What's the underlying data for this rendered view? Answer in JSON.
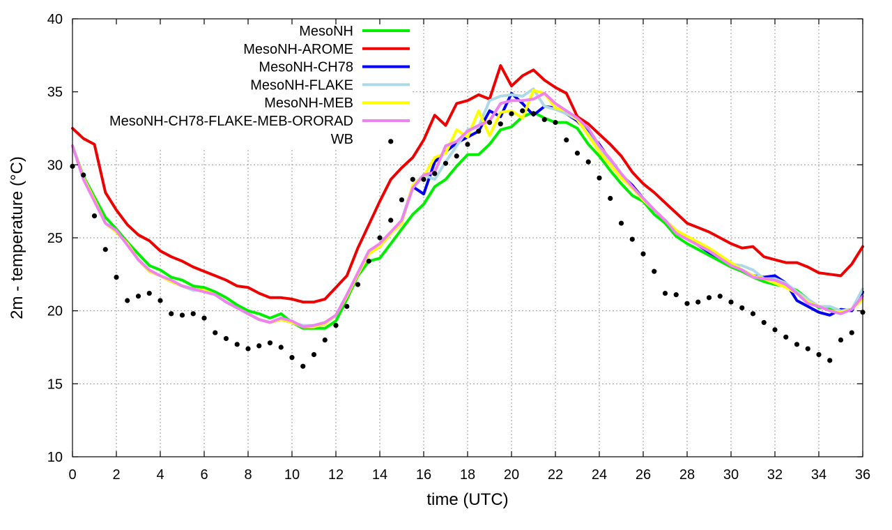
{
  "chart_data": {
    "type": "line",
    "title": "",
    "xlabel": "time (UTC)",
    "ylabel": "2m - temperature (°C)",
    "xlim": [
      0,
      36
    ],
    "ylim": [
      10,
      40
    ],
    "xticks": [
      0,
      2,
      4,
      6,
      8,
      10,
      12,
      14,
      16,
      18,
      20,
      22,
      24,
      26,
      28,
      30,
      32,
      34,
      36
    ],
    "yticks": [
      10,
      15,
      20,
      25,
      30,
      35,
      40
    ],
    "grid": true,
    "legend_position": "top-left",
    "series": [
      {
        "name": "MesoNH",
        "color": "#00ee00",
        "style": "line",
        "x": [
          0,
          0.5,
          1,
          1.5,
          2,
          2.5,
          3,
          3.5,
          4,
          4.5,
          5,
          5.5,
          6,
          6.5,
          7,
          7.5,
          8,
          8.5,
          9,
          9.5,
          10,
          10.5,
          11,
          11.5,
          12,
          12.5,
          13,
          13.5,
          14,
          14.5,
          15,
          15.5,
          16,
          16.5,
          17,
          17.5,
          18,
          18.5,
          19,
          19.5,
          20,
          20.5,
          21,
          21.5,
          22,
          22.5,
          23,
          23.5,
          24,
          24.5,
          25,
          25.5,
          26,
          26.5,
          27,
          27.5,
          28,
          28.5,
          29,
          29.5,
          30,
          30.5,
          31,
          31.5,
          32,
          32.5,
          33,
          33.5,
          34,
          34.5,
          35,
          35.5,
          36
        ],
        "values": [
          31.3,
          29.2,
          27.8,
          26.4,
          25.6,
          24.7,
          23.9,
          23.1,
          22.8,
          22.3,
          22.1,
          21.7,
          21.6,
          21.3,
          20.9,
          20.4,
          20.0,
          19.8,
          19.5,
          19.8,
          19.2,
          18.8,
          18.8,
          18.8,
          19.3,
          20.8,
          22.4,
          23.4,
          23.6,
          24.6,
          25.6,
          26.6,
          27.3,
          28.5,
          29.0,
          29.9,
          30.7,
          30.7,
          31.4,
          32.4,
          32.6,
          33.3,
          33.6,
          33.2,
          32.9,
          32.9,
          32.5,
          31.4,
          30.6,
          29.6,
          28.7,
          27.9,
          27.5,
          26.6,
          26.0,
          25.1,
          24.6,
          24.2,
          23.8,
          23.4,
          23.0,
          22.7,
          22.3,
          22.0,
          21.8,
          21.7,
          21.4,
          20.8,
          20.2,
          20.2,
          20.0,
          20.1,
          21.2
        ]
      },
      {
        "name": "MesoNH-AROME",
        "color": "#ee0000",
        "style": "line",
        "x": [
          0,
          0.5,
          1,
          1.5,
          2,
          2.5,
          3,
          3.5,
          4,
          4.5,
          5,
          5.5,
          6,
          6.5,
          7,
          7.5,
          8,
          8.5,
          9,
          9.5,
          10,
          10.5,
          11,
          11.5,
          12,
          12.5,
          13,
          13.5,
          14,
          14.5,
          15,
          15.5,
          16,
          16.5,
          17,
          17.5,
          18,
          18.5,
          19,
          19.5,
          20,
          20.5,
          21,
          21.5,
          22,
          22.5,
          23,
          23.5,
          24,
          24.5,
          25,
          25.5,
          26,
          26.5,
          27,
          27.5,
          28,
          28.5,
          29,
          29.5,
          30,
          30.5,
          31,
          31.5,
          32,
          32.5,
          33,
          33.5,
          34,
          34.5,
          35,
          35.5,
          36
        ],
        "values": [
          32.5,
          31.8,
          31.4,
          28.1,
          26.9,
          25.9,
          25.2,
          24.8,
          24.1,
          23.7,
          23.4,
          23.0,
          22.7,
          22.4,
          22.1,
          21.7,
          21.6,
          21.2,
          20.9,
          20.9,
          20.8,
          20.6,
          20.6,
          20.8,
          21.6,
          22.4,
          24.3,
          25.9,
          27.5,
          29.0,
          29.8,
          30.5,
          31.7,
          33.4,
          32.7,
          34.2,
          34.4,
          34.8,
          34.5,
          36.8,
          35.4,
          36.1,
          36.5,
          35.8,
          35.3,
          34.9,
          33.3,
          32.8,
          32.1,
          31.4,
          30.6,
          29.5,
          28.7,
          28.1,
          27.4,
          26.7,
          26.0,
          25.7,
          25.4,
          25.0,
          24.6,
          24.3,
          24.4,
          23.7,
          23.5,
          23.3,
          23.3,
          23.0,
          22.6,
          22.5,
          22.4,
          23.2,
          24.4
        ]
      },
      {
        "name": "MesoNH-CH78",
        "color": "#0000ee",
        "style": "line",
        "x": [
          0,
          0.5,
          1,
          1.5,
          2,
          2.5,
          3,
          3.5,
          4,
          4.5,
          5,
          5.5,
          6,
          6.5,
          7,
          7.5,
          8,
          8.5,
          9,
          9.5,
          10,
          10.5,
          11,
          11.5,
          12,
          12.5,
          13,
          13.5,
          14,
          14.5,
          15,
          15.5,
          16,
          16.5,
          17,
          17.5,
          18,
          18.5,
          19,
          19.5,
          20,
          20.5,
          21,
          21.5,
          22,
          22.5,
          23,
          23.5,
          24,
          24.5,
          25,
          25.5,
          26,
          26.5,
          27,
          27.5,
          28,
          28.5,
          29,
          29.5,
          30,
          30.5,
          31,
          31.5,
          32,
          32.5,
          33,
          33.5,
          34,
          34.5,
          35,
          35.5,
          36
        ],
        "values": [
          31.3,
          29.1,
          27.6,
          26.0,
          25.4,
          24.6,
          23.5,
          22.7,
          22.4,
          22.0,
          21.7,
          21.5,
          21.4,
          21.1,
          20.6,
          20.2,
          19.8,
          19.4,
          19.2,
          19.4,
          19.2,
          18.9,
          18.9,
          19.1,
          19.7,
          21.0,
          22.5,
          23.9,
          24.4,
          25.3,
          26.2,
          28.5,
          28.0,
          30.2,
          30.9,
          31.5,
          31.9,
          32.3,
          33.7,
          33.3,
          34.9,
          34.2,
          33.4,
          34.0,
          33.9,
          33.5,
          33.0,
          32.2,
          31.4,
          30.3,
          29.3,
          28.6,
          27.7,
          26.9,
          26.2,
          25.5,
          25.0,
          24.5,
          24.0,
          23.6,
          23.2,
          22.8,
          22.4,
          22.3,
          22.4,
          21.9,
          20.7,
          20.3,
          19.9,
          19.7,
          20.1,
          20.0,
          21.3
        ]
      },
      {
        "name": "MesoNH-FLAKE",
        "color": "#add8e6",
        "style": "line",
        "x": [
          0,
          0.5,
          1,
          1.5,
          2,
          2.5,
          3,
          3.5,
          4,
          4.5,
          5,
          5.5,
          6,
          6.5,
          7,
          7.5,
          8,
          8.5,
          9,
          9.5,
          10,
          10.5,
          11,
          11.5,
          12,
          12.5,
          13,
          13.5,
          14,
          14.5,
          15,
          15.5,
          16,
          16.5,
          17,
          17.5,
          18,
          18.5,
          19,
          19.5,
          20,
          20.5,
          21,
          21.5,
          22,
          22.5,
          23,
          23.5,
          24,
          24.5,
          25,
          25.5,
          26,
          26.5,
          27,
          27.5,
          28,
          28.5,
          29,
          29.5,
          30,
          30.5,
          31,
          31.5,
          32,
          32.5,
          33,
          33.5,
          34,
          34.5,
          35,
          35.5,
          36
        ],
        "values": [
          31.3,
          29.1,
          27.6,
          26.0,
          25.4,
          24.6,
          23.5,
          22.7,
          22.4,
          22.0,
          21.7,
          21.4,
          21.4,
          21.1,
          20.6,
          20.2,
          19.8,
          19.4,
          19.2,
          19.4,
          19.2,
          19.0,
          19.0,
          19.1,
          19.7,
          21.0,
          22.5,
          23.9,
          24.4,
          25.3,
          26.2,
          28.6,
          29.3,
          29.0,
          30.2,
          31.3,
          32.4,
          32.6,
          34.4,
          34.7,
          34.8,
          34.7,
          35.2,
          34.0,
          33.8,
          33.5,
          33.1,
          32.1,
          31.0,
          30.1,
          29.1,
          28.4,
          27.6,
          26.9,
          26.2,
          25.5,
          24.9,
          24.6,
          24.1,
          23.6,
          23.2,
          23.1,
          22.8,
          22.2,
          22.2,
          21.9,
          21.3,
          20.8,
          20.3,
          20.3,
          20.0,
          20.1,
          21.5
        ]
      },
      {
        "name": "MesoNH-MEB",
        "color": "#ffff00",
        "style": "line",
        "x": [
          0,
          0.5,
          1,
          1.5,
          2,
          2.5,
          3,
          3.5,
          4,
          4.5,
          5,
          5.5,
          6,
          6.5,
          7,
          7.5,
          8,
          8.5,
          9,
          9.5,
          10,
          10.5,
          11,
          11.5,
          12,
          12.5,
          13,
          13.5,
          14,
          14.5,
          15,
          15.5,
          16,
          16.5,
          17,
          17.5,
          18,
          18.5,
          19,
          19.5,
          20,
          20.5,
          21,
          21.5,
          22,
          22.5,
          23,
          23.5,
          24,
          24.5,
          25,
          25.5,
          26,
          26.5,
          27,
          27.5,
          28,
          28.5,
          29,
          29.5,
          30,
          30.5,
          31,
          31.5,
          32,
          32.5,
          33,
          33.5,
          34,
          34.5,
          35,
          35.5,
          36
        ],
        "values": [
          31.3,
          29.1,
          27.6,
          26.0,
          25.4,
          24.6,
          23.5,
          22.7,
          22.4,
          22.0,
          21.7,
          21.5,
          21.4,
          21.1,
          20.6,
          20.2,
          19.8,
          19.4,
          19.2,
          19.4,
          19.2,
          18.9,
          18.9,
          19.1,
          19.7,
          21.0,
          22.5,
          23.9,
          24.4,
          25.3,
          26.0,
          28.6,
          29.2,
          30.5,
          30.8,
          32.4,
          31.9,
          33.7,
          32.0,
          33.6,
          33.7,
          33.2,
          35.1,
          34.9,
          33.9,
          33.7,
          33.1,
          32.0,
          30.9,
          30.0,
          29.1,
          28.4,
          27.6,
          26.9,
          26.2,
          25.5,
          25.1,
          24.7,
          24.3,
          23.8,
          23.3,
          22.8,
          22.4,
          22.2,
          21.9,
          21.6,
          21.2,
          20.6,
          20.3,
          20.0,
          19.9,
          20.1,
          20.8
        ]
      },
      {
        "name": "MesoNH-CH78-FLAKE-MEB-ORORAD",
        "color": "#ee82ee",
        "style": "line",
        "x": [
          0,
          0.5,
          1,
          1.5,
          2,
          2.5,
          3,
          3.5,
          4,
          4.5,
          5,
          5.5,
          6,
          6.5,
          7,
          7.5,
          8,
          8.5,
          9,
          9.5,
          10,
          10.5,
          11,
          11.5,
          12,
          12.5,
          13,
          13.5,
          14,
          14.5,
          15,
          15.5,
          16,
          16.5,
          17,
          17.5,
          18,
          18.5,
          19,
          19.5,
          20,
          20.5,
          21,
          21.5,
          22,
          22.5,
          23,
          23.5,
          24,
          24.5,
          25,
          25.5,
          26,
          26.5,
          27,
          27.5,
          28,
          28.5,
          29,
          29.5,
          30,
          30.5,
          31,
          31.5,
          32,
          32.5,
          33,
          33.5,
          34,
          34.5,
          35,
          35.5,
          36
        ],
        "values": [
          31.3,
          29.0,
          27.5,
          26.0,
          25.5,
          24.5,
          23.5,
          22.8,
          22.4,
          22.1,
          21.7,
          21.5,
          21.3,
          21.1,
          20.6,
          20.2,
          19.8,
          19.4,
          19.2,
          19.5,
          19.3,
          18.9,
          19.0,
          19.2,
          19.7,
          21.1,
          22.6,
          24.1,
          24.6,
          25.4,
          26.2,
          28.4,
          29.3,
          29.5,
          31.3,
          31.6,
          32.3,
          32.7,
          33.0,
          34.2,
          34.4,
          34.4,
          34.5,
          34.9,
          34.2,
          33.7,
          33.2,
          32.5,
          31.3,
          30.4,
          29.4,
          28.5,
          27.7,
          26.9,
          26.2,
          25.3,
          24.9,
          24.5,
          24.1,
          23.6,
          23.1,
          22.8,
          22.3,
          22.2,
          22.1,
          21.8,
          21.2,
          20.5,
          20.3,
          20.0,
          19.8,
          20.1,
          21.0
        ]
      },
      {
        "name": "WB",
        "color": "#000000",
        "style": "points",
        "x": [
          0,
          0.5,
          1,
          1.5,
          2,
          2.5,
          3,
          3.5,
          4,
          4.5,
          5,
          5.5,
          6,
          6.5,
          7,
          7.5,
          8,
          8.5,
          9,
          9.5,
          10,
          10.5,
          11,
          11.5,
          12,
          12.5,
          13,
          13.5,
          14,
          14.5,
          15,
          15.5,
          16,
          16.5,
          17,
          17.5,
          18,
          18.5,
          19,
          19.5,
          20,
          20.5,
          21,
          21.5,
          22,
          22.5,
          23,
          23.5,
          24,
          24.5,
          25,
          25.5,
          26,
          26.5,
          27,
          27.5,
          28,
          28.5,
          29,
          29.5,
          30,
          30.5,
          31,
          31.5,
          32,
          32.5,
          33,
          33.5,
          34,
          34.5,
          35,
          35.5,
          36
        ],
        "values": [
          29.9,
          29.3,
          26.5,
          24.2,
          22.3,
          20.7,
          21.0,
          21.2,
          20.7,
          19.8,
          19.7,
          19.8,
          19.5,
          18.5,
          18.1,
          17.7,
          17.4,
          17.6,
          17.8,
          17.5,
          16.8,
          16.2,
          17.0,
          18.0,
          19.0,
          20.3,
          21.8,
          23.4,
          25.0,
          26.2,
          27.6,
          29.0,
          29.0,
          29.4,
          30.1,
          30.6,
          31.4,
          32.3,
          32.9,
          32.8,
          33.5,
          33.7,
          33.5,
          33.1,
          32.9,
          31.7,
          30.8,
          30.2,
          29.1,
          27.7,
          26.0,
          24.9,
          23.9,
          22.7,
          21.2,
          21.1,
          20.5,
          20.6,
          20.9,
          21.0,
          20.6,
          20.2,
          19.8,
          19.2,
          18.7,
          18.2,
          17.7,
          17.4,
          17.0,
          16.6,
          18.0,
          18.5,
          19.9
        ]
      }
    ],
    "legend_extra_point": [
      14.5,
      31.6
    ]
  }
}
